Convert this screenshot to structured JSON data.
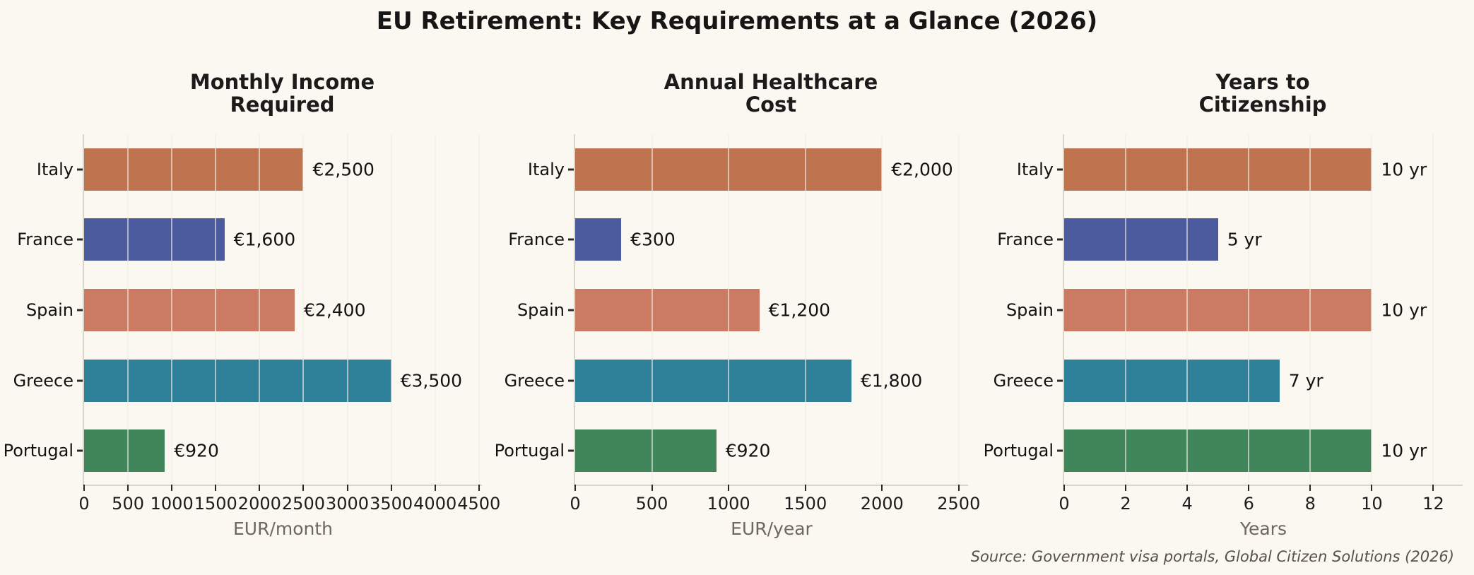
{
  "figure": {
    "title": "EU Retirement: Key Requirements at a Glance (2026)",
    "source": "Source: Government visa portals, Global Citizen Solutions (2026)",
    "background": "#FAF8F0"
  },
  "palette": {
    "Italy": "#C0734F",
    "France": "#4C5B9D",
    "Spain": "#CB7B64",
    "Greece": "#2F8199",
    "Portugal": "#41855A"
  },
  "chart_data": [
    {
      "type": "bar",
      "orientation": "horizontal",
      "title": "Monthly Income\nRequired",
      "categories": [
        "Italy",
        "France",
        "Spain",
        "Greece",
        "Portugal"
      ],
      "values": [
        2500,
        1600,
        2400,
        3500,
        920
      ],
      "bar_labels": [
        "€2,500",
        "€1,600",
        "€2,400",
        "€3,500",
        "€920"
      ],
      "xlabel": "EUR/month",
      "xticks": [
        0,
        500,
        1000,
        1500,
        2000,
        2500,
        3000,
        3500,
        4000,
        4500
      ],
      "xlim": [
        0,
        4550
      ],
      "grid": true,
      "legend": false
    },
    {
      "type": "bar",
      "orientation": "horizontal",
      "title": "Annual Healthcare\nCost",
      "categories": [
        "Italy",
        "France",
        "Spain",
        "Greece",
        "Portugal"
      ],
      "values": [
        2000,
        300,
        1200,
        1800,
        920
      ],
      "bar_labels": [
        "€2,000",
        "€300",
        "€1,200",
        "€1,800",
        "€920"
      ],
      "xlabel": "EUR/year",
      "xticks": [
        0,
        500,
        1000,
        1500,
        2000,
        2500
      ],
      "xlim": [
        0,
        2570
      ],
      "grid": true,
      "legend": false
    },
    {
      "type": "bar",
      "orientation": "horizontal",
      "title": "Years to\nCitizenship",
      "categories": [
        "Italy",
        "France",
        "Spain",
        "Greece",
        "Portugal"
      ],
      "values": [
        10,
        5,
        10,
        7,
        10
      ],
      "bar_labels": [
        "10 yr",
        "5 yr",
        "10 yr",
        "7 yr",
        "10 yr"
      ],
      "xlabel": "Years",
      "xticks": [
        0,
        2,
        4,
        6,
        8,
        10,
        12
      ],
      "xlim": [
        0,
        13
      ],
      "grid": true,
      "legend": false
    }
  ]
}
